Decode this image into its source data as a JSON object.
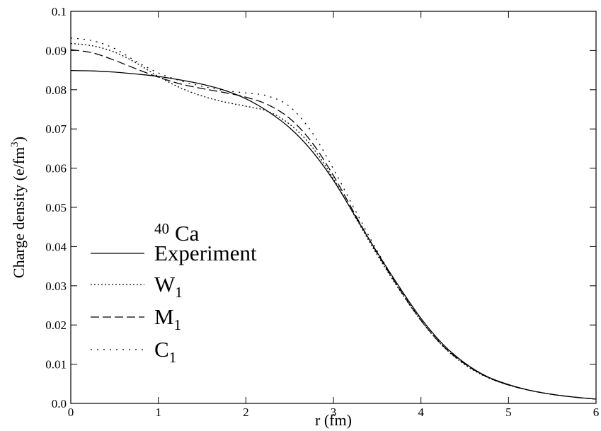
{
  "chart_data": {
    "type": "line",
    "xlabel": "r (fm)",
    "ylabel_main": "Charge density (e/fm",
    "ylabel_sup": "3",
    "ylabel_close": ")",
    "xlim": [
      0,
      6
    ],
    "ylim": [
      0,
      0.1
    ],
    "x_ticks": [
      0,
      1,
      2,
      3,
      4,
      5,
      6
    ],
    "x_tick_labels": [
      "0",
      "1",
      "2",
      "3",
      "4",
      "5",
      "6"
    ],
    "y_ticks": [
      0,
      0.01,
      0.02,
      0.03,
      0.04,
      0.05,
      0.06,
      0.07,
      0.08,
      0.09,
      0.1
    ],
    "y_tick_labels": [
      "0.0",
      "0.01",
      "0.02",
      "0.03",
      "0.04",
      "0.05",
      "0.06",
      "0.07",
      "0.08",
      "0.09",
      "0.1"
    ],
    "grid": false,
    "legend": {
      "position": "lower-left",
      "title_sup": "40",
      "title_main": "Ca"
    },
    "series": [
      {
        "name": "Experiment",
        "name_sub": "",
        "style": "solid",
        "x": [
          0,
          0.25,
          0.5,
          0.75,
          1.0,
          1.25,
          1.5,
          1.75,
          2.0,
          2.25,
          2.5,
          2.75,
          3.0,
          3.25,
          3.5,
          3.75,
          4.0,
          4.25,
          4.5,
          4.75,
          5.0,
          5.25,
          5.5,
          5.75,
          6.0
        ],
        "y": [
          0.0849,
          0.0848,
          0.0845,
          0.084,
          0.0834,
          0.0825,
          0.0814,
          0.0799,
          0.0777,
          0.0745,
          0.0703,
          0.0645,
          0.0569,
          0.0477,
          0.0385,
          0.0298,
          0.0217,
          0.0151,
          0.0103,
          0.0069,
          0.0048,
          0.0033,
          0.0023,
          0.0016,
          0.0011
        ]
      },
      {
        "name": "W",
        "name_sub": "1",
        "style": "dotted",
        "x": [
          0,
          0.25,
          0.5,
          0.75,
          1.0,
          1.25,
          1.5,
          1.75,
          2.0,
          2.25,
          2.5,
          2.75,
          3.0,
          3.25,
          3.5,
          3.75,
          4.0,
          4.25,
          4.5,
          4.75,
          5.0,
          5.25,
          5.5,
          5.75,
          6.0
        ],
        "y": [
          0.0918,
          0.0912,
          0.0896,
          0.0868,
          0.0834,
          0.0805,
          0.0784,
          0.0769,
          0.0758,
          0.0745,
          0.0712,
          0.0656,
          0.0573,
          0.0475,
          0.0379,
          0.0291,
          0.0211,
          0.0146,
          0.0099,
          0.0067,
          0.0047,
          0.0033,
          0.0023,
          0.0016,
          0.0011
        ]
      },
      {
        "name": "M",
        "name_sub": "1",
        "style": "dashed",
        "x": [
          0,
          0.25,
          0.5,
          0.75,
          1.0,
          1.25,
          1.5,
          1.75,
          2.0,
          2.25,
          2.5,
          2.75,
          3.0,
          3.25,
          3.5,
          3.75,
          4.0,
          4.25,
          4.5,
          4.75,
          5.0,
          5.25,
          5.5,
          5.75,
          6.0
        ],
        "y": [
          0.0902,
          0.0894,
          0.0875,
          0.0853,
          0.0832,
          0.0815,
          0.0803,
          0.0793,
          0.0781,
          0.0762,
          0.0727,
          0.0667,
          0.0581,
          0.0481,
          0.0383,
          0.0293,
          0.0212,
          0.0147,
          0.0101,
          0.0068,
          0.0047,
          0.0033,
          0.0023,
          0.0016,
          0.0011
        ]
      },
      {
        "name": "C",
        "name_sub": "1",
        "style": "sparse-dotted",
        "x": [
          0,
          0.25,
          0.5,
          0.75,
          1.0,
          1.25,
          1.5,
          1.75,
          2.0,
          2.25,
          2.5,
          2.75,
          3.0,
          3.25,
          3.5,
          3.75,
          4.0,
          4.25,
          4.5,
          4.75,
          5.0,
          5.25,
          5.5,
          5.75,
          6.0
        ],
        "y": [
          0.0932,
          0.0925,
          0.0905,
          0.0872,
          0.0843,
          0.0823,
          0.0809,
          0.0798,
          0.0792,
          0.0784,
          0.0757,
          0.0693,
          0.0598,
          0.0492,
          0.0389,
          0.0296,
          0.0213,
          0.0148,
          0.0101,
          0.0068,
          0.0047,
          0.0033,
          0.0023,
          0.0016,
          0.0011
        ]
      }
    ]
  }
}
